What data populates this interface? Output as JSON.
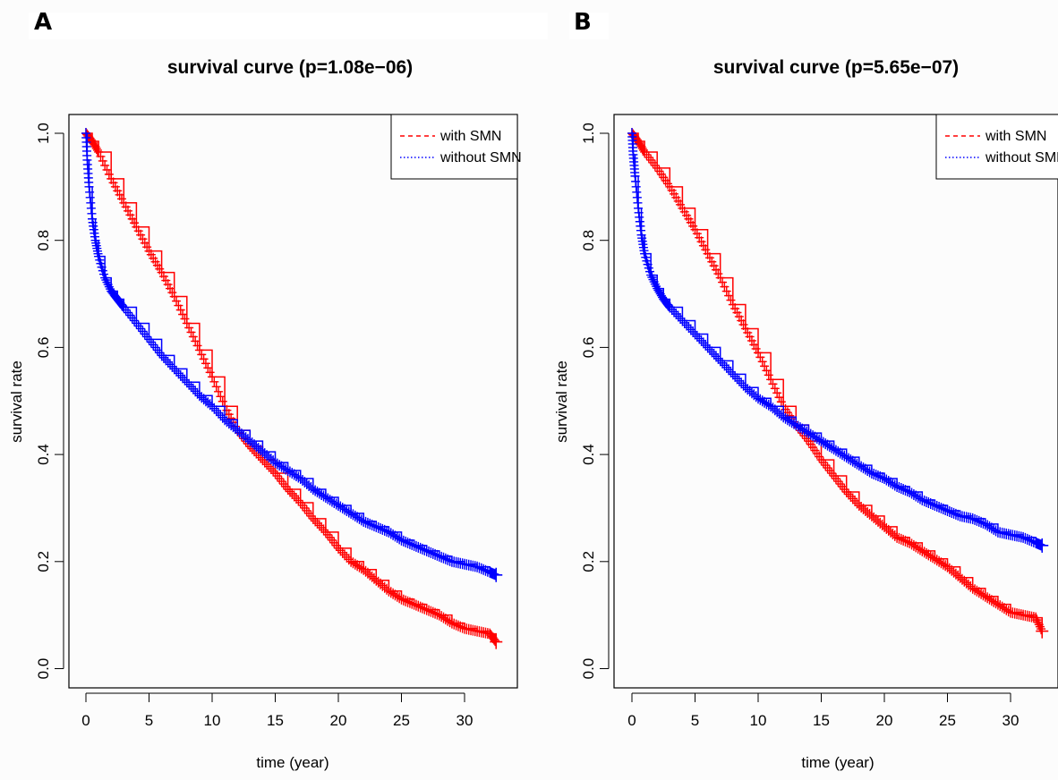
{
  "chart_data": [
    {
      "panel_label": "A",
      "type": "line",
      "title": "survival curve (p=1.08e−06)",
      "xlabel": "time (year)",
      "ylabel": "survival rate",
      "xlim": [
        0,
        33
      ],
      "ylim": [
        0,
        1
      ],
      "xticks": [
        "0",
        "5",
        "10",
        "15",
        "20",
        "25",
        "30"
      ],
      "yticks": [
        "0.0",
        "0.2",
        "0.4",
        "0.6",
        "0.8",
        "1.0"
      ],
      "legend": {
        "position": "top-right"
      },
      "series": [
        {
          "name": "with SMN",
          "color": "#ff0000",
          "linestyle": "dashed",
          "x": [
            0,
            0.5,
            1,
            2,
            3,
            4,
            5,
            6,
            7,
            8,
            9,
            10,
            11,
            12,
            13,
            14,
            15,
            16,
            17,
            18,
            19,
            20,
            21,
            22,
            23,
            24,
            25,
            26,
            27,
            28,
            29,
            30,
            31,
            32,
            32.5
          ],
          "y": [
            1.0,
            0.985,
            0.965,
            0.915,
            0.87,
            0.825,
            0.78,
            0.74,
            0.695,
            0.645,
            0.595,
            0.545,
            0.49,
            0.445,
            0.415,
            0.39,
            0.365,
            0.335,
            0.31,
            0.28,
            0.255,
            0.225,
            0.2,
            0.185,
            0.165,
            0.145,
            0.13,
            0.12,
            0.11,
            0.1,
            0.085,
            0.075,
            0.07,
            0.065,
            0.05
          ]
        },
        {
          "name": "without SMN",
          "color": "#0000ff",
          "linestyle": "dotted",
          "x": [
            0,
            0.1,
            0.25,
            0.5,
            0.75,
            1,
            1.5,
            2,
            2.5,
            3,
            4,
            5,
            6,
            7,
            8,
            9,
            10,
            11,
            12,
            13,
            14,
            15,
            16,
            17,
            18,
            19,
            20,
            21,
            22,
            23,
            24,
            25,
            26,
            27,
            28,
            29,
            30,
            31,
            32,
            32.5
          ],
          "y": [
            1.0,
            0.95,
            0.9,
            0.84,
            0.8,
            0.77,
            0.73,
            0.705,
            0.69,
            0.675,
            0.645,
            0.615,
            0.585,
            0.56,
            0.535,
            0.51,
            0.49,
            0.465,
            0.445,
            0.425,
            0.405,
            0.385,
            0.37,
            0.355,
            0.335,
            0.32,
            0.305,
            0.29,
            0.275,
            0.265,
            0.255,
            0.24,
            0.23,
            0.22,
            0.21,
            0.2,
            0.195,
            0.19,
            0.18,
            0.175
          ]
        }
      ]
    },
    {
      "panel_label": "B",
      "type": "line",
      "title": "survival curve (p=5.65e−07)",
      "xlabel": "time (year)",
      "ylabel": "survival rate",
      "xlim": [
        0,
        33
      ],
      "ylim": [
        0,
        1
      ],
      "xticks": [
        "0",
        "5",
        "10",
        "15",
        "20",
        "25",
        "30"
      ],
      "yticks": [
        "0.0",
        "0.2",
        "0.4",
        "0.6",
        "0.8",
        "1.0"
      ],
      "legend": {
        "position": "top-right"
      },
      "series": [
        {
          "name": "with SMN",
          "color": "#ff0000",
          "linestyle": "dashed",
          "x": [
            0,
            0.5,
            1,
            2,
            3,
            4,
            5,
            6,
            7,
            8,
            9,
            10,
            11,
            12,
            13,
            14,
            15,
            16,
            17,
            18,
            19,
            20,
            21,
            22,
            23,
            24,
            25,
            26,
            27,
            28,
            29,
            30,
            31,
            32,
            32.5
          ],
          "y": [
            1.0,
            0.985,
            0.965,
            0.935,
            0.9,
            0.86,
            0.82,
            0.775,
            0.73,
            0.68,
            0.635,
            0.59,
            0.54,
            0.49,
            0.455,
            0.425,
            0.39,
            0.36,
            0.33,
            0.305,
            0.285,
            0.265,
            0.245,
            0.235,
            0.22,
            0.205,
            0.19,
            0.17,
            0.15,
            0.135,
            0.12,
            0.105,
            0.1,
            0.095,
            0.07
          ]
        },
        {
          "name": "without SMN",
          "color": "#0000ff",
          "linestyle": "dotted",
          "x": [
            0,
            0.1,
            0.25,
            0.5,
            0.75,
            1,
            1.5,
            2,
            2.5,
            3,
            4,
            5,
            6,
            7,
            8,
            9,
            10,
            11,
            12,
            13,
            14,
            15,
            16,
            17,
            18,
            19,
            20,
            21,
            22,
            23,
            24,
            25,
            26,
            27,
            28,
            29,
            30,
            31,
            32,
            32.5
          ],
          "y": [
            1.0,
            0.96,
            0.92,
            0.86,
            0.81,
            0.775,
            0.735,
            0.71,
            0.69,
            0.675,
            0.65,
            0.625,
            0.6,
            0.575,
            0.55,
            0.525,
            0.505,
            0.49,
            0.47,
            0.455,
            0.44,
            0.425,
            0.41,
            0.395,
            0.38,
            0.365,
            0.355,
            0.34,
            0.33,
            0.315,
            0.305,
            0.295,
            0.285,
            0.28,
            0.27,
            0.255,
            0.25,
            0.245,
            0.235,
            0.23
          ]
        }
      ]
    }
  ]
}
